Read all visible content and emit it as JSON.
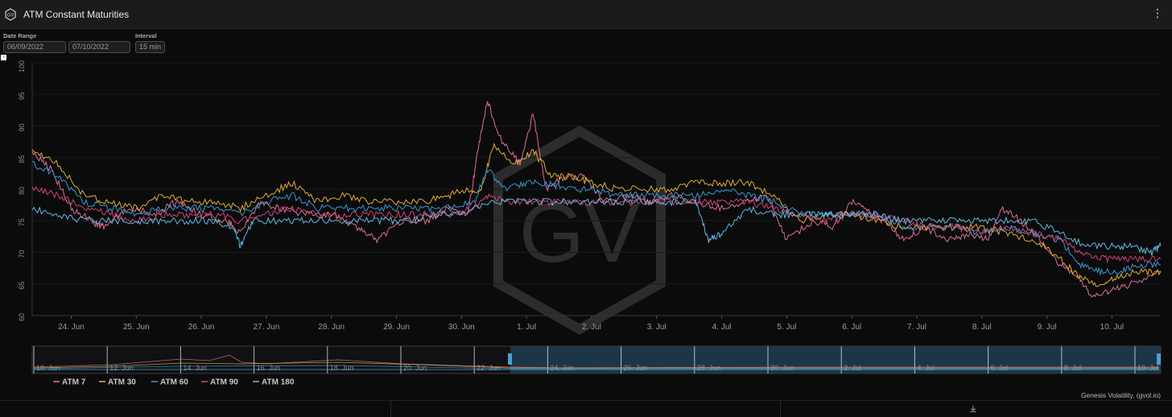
{
  "window": {
    "title": "ATM Constant Maturities",
    "menu_icon": "ellipsis-icon"
  },
  "controls": {
    "date_range_label": "Date Range",
    "start_date": "06/09/2022",
    "end_date": "07/10/2022",
    "interval_label": "Interval",
    "interval_value": "15 min"
  },
  "footer": {
    "credit": "Genesis Volatility, (gvol.io)"
  },
  "watermark": {
    "text": "GV"
  },
  "colors": {
    "atm7": "#e8739a",
    "atm30": "#e8b731",
    "atm60": "#3aa0d9",
    "atm90": "#d8487a",
    "atm180": "#62c3ec",
    "background": "#0b0b0c",
    "navigator_fill": "#1f3b4d"
  },
  "chart_data": {
    "type": "line",
    "ylim": [
      60,
      100
    ],
    "yticks": [
      "60",
      "65",
      "70",
      "75",
      "80",
      "85",
      "90",
      "95",
      "100"
    ],
    "xticks": [
      "24. Jun",
      "25. Jun",
      "26. Jun",
      "27. Jun",
      "28. Jun",
      "29. Jun",
      "30. Jun",
      "1. Jul",
      "2. Jul",
      "3. Jul",
      "4. Jul",
      "5. Jul",
      "6. Jul",
      "7. Jul",
      "8. Jul",
      "9. Jul",
      "10. Jul"
    ],
    "navigator_ticks": [
      "10. Jun",
      "12. Jun",
      "14. Jun",
      "16. Jun",
      "18. Jun",
      "20. Jun",
      "22. Jun",
      "24. Jun",
      "26. Jun",
      "28. Jun",
      "30. Jun",
      "2. Jul",
      "4. Jul",
      "6. Jul",
      "8. Jul",
      "10. Jul"
    ],
    "x_start": 23.4,
    "x_end": 40.75,
    "x_note": "x values are days in June 2022 (32 = 2 Jul)",
    "series": [
      {
        "name": "ATM 7",
        "x": [
          23.4,
          23.7,
          24.0,
          24.3,
          24.5,
          24.9,
          25.3,
          25.6,
          26.0,
          26.4,
          26.6,
          26.9,
          27.2,
          27.6,
          28.0,
          28.4,
          28.7,
          29.1,
          29.5,
          29.8,
          30.1,
          30.25,
          30.4,
          30.6,
          30.9,
          31.1,
          31.3,
          31.6,
          31.9,
          32.2,
          32.6,
          32.9,
          33.2,
          33.6,
          34.0,
          34.4,
          34.7,
          35.0,
          35.4,
          35.7,
          36.0,
          36.3,
          36.5,
          36.8,
          37.1,
          37.5,
          37.8,
          38.1,
          38.3,
          38.6,
          38.9,
          39.2,
          39.5,
          39.7,
          40.0,
          40.3,
          40.75
        ],
        "y": [
          86,
          83,
          77,
          75,
          74,
          77,
          76,
          78,
          76,
          75,
          73,
          78,
          77,
          76,
          76,
          74,
          72,
          75,
          75,
          77,
          76,
          86,
          94,
          88,
          84,
          92,
          80,
          82,
          82,
          78,
          79,
          78,
          79,
          78,
          77,
          78,
          79,
          72,
          75,
          74,
          78,
          76,
          75,
          72,
          74,
          72,
          73,
          72,
          77,
          75,
          72,
          68,
          66,
          63,
          64,
          65,
          67
        ]
      },
      {
        "name": "ATM 30",
        "x": [
          23.4,
          23.8,
          24.2,
          24.6,
          25.0,
          25.4,
          25.8,
          26.2,
          26.6,
          27.0,
          27.4,
          27.8,
          28.2,
          28.6,
          29.0,
          29.4,
          29.8,
          30.1,
          30.3,
          30.5,
          30.8,
          31.1,
          31.4,
          31.7,
          32.0,
          32.4,
          32.8,
          33.2,
          33.6,
          34.0,
          34.4,
          34.8,
          35.2,
          35.6,
          36.0,
          36.4,
          36.8,
          37.2,
          37.6,
          38.0,
          38.4,
          38.8,
          39.2,
          39.5,
          39.8,
          40.1,
          40.4,
          40.75
        ],
        "y": [
          86,
          84,
          79,
          78,
          77,
          79,
          78,
          78,
          77,
          79,
          81,
          78,
          79,
          78,
          78,
          78,
          79,
          80,
          80,
          87,
          84,
          86,
          82,
          82,
          81,
          80,
          80,
          80,
          81,
          81,
          81,
          79,
          75,
          76,
          76,
          75,
          74,
          74,
          74,
          74,
          73,
          72,
          69,
          66,
          65,
          66,
          67,
          67
        ]
      },
      {
        "name": "ATM 60",
        "x": [
          23.4,
          23.8,
          24.2,
          24.6,
          25.0,
          25.4,
          25.8,
          26.2,
          26.6,
          27.0,
          27.4,
          27.8,
          28.2,
          28.6,
          29.0,
          29.4,
          29.8,
          30.2,
          30.4,
          30.7,
          31.0,
          31.3,
          31.6,
          32.0,
          32.4,
          32.8,
          33.2,
          33.6,
          34.0,
          34.4,
          34.8,
          35.2,
          35.6,
          36.0,
          36.4,
          36.8,
          37.2,
          37.6,
          38.0,
          38.4,
          38.8,
          39.2,
          39.5,
          39.8,
          40.1,
          40.4,
          40.75
        ],
        "y": [
          84,
          82,
          78,
          77,
          76,
          77,
          77,
          77,
          76,
          78,
          79,
          77,
          77,
          77,
          77,
          77,
          77,
          78,
          83,
          80,
          81,
          81,
          80,
          80,
          79,
          79,
          79,
          79,
          80,
          79,
          78,
          76,
          76,
          76,
          76,
          74,
          74,
          74,
          73,
          74,
          73,
          72,
          68,
          67,
          67,
          68,
          68
        ]
      },
      {
        "name": "ATM 90",
        "x": [
          23.4,
          23.8,
          24.2,
          24.6,
          25.0,
          25.4,
          25.8,
          26.2,
          26.6,
          27.0,
          27.4,
          27.8,
          28.2,
          28.6,
          29.0,
          29.4,
          29.8,
          30.2,
          30.4,
          30.7,
          31.0,
          31.3,
          31.6,
          32.0,
          32.4,
          32.8,
          33.2,
          33.6,
          34.0,
          34.4,
          34.8,
          35.2,
          35.6,
          36.0,
          36.4,
          36.8,
          37.2,
          37.6,
          38.0,
          38.4,
          38.8,
          39.2,
          39.5,
          39.8,
          40.1,
          40.4,
          40.75
        ],
        "y": [
          80,
          79,
          77,
          76,
          75,
          76,
          76,
          76,
          75,
          76,
          77,
          76,
          76,
          76,
          76,
          76,
          76,
          77,
          79,
          78,
          78,
          78,
          78,
          78,
          78,
          78,
          78,
          78,
          78,
          78,
          77,
          76,
          75,
          76,
          76,
          75,
          74,
          74,
          73,
          74,
          73,
          72,
          70,
          69,
          69,
          69,
          69
        ]
      },
      {
        "name": "ATM 180",
        "x": [
          23.4,
          23.8,
          24.2,
          24.6,
          25.0,
          25.4,
          25.8,
          26.2,
          26.5,
          26.6,
          26.8,
          27.2,
          27.6,
          28.0,
          28.4,
          28.8,
          29.2,
          29.6,
          30.0,
          30.4,
          30.8,
          31.2,
          31.6,
          32.0,
          32.4,
          32.8,
          33.2,
          33.6,
          33.8,
          34.0,
          34.4,
          34.8,
          35.2,
          35.6,
          36.0,
          36.4,
          36.8,
          37.2,
          37.6,
          38.0,
          38.4,
          38.8,
          39.2,
          39.6,
          40.0,
          40.3,
          40.6,
          40.75
        ],
        "y": [
          77,
          76,
          75,
          75,
          75,
          75,
          75,
          75,
          74,
          71,
          75,
          75,
          75,
          75,
          75,
          75,
          75,
          76,
          76,
          78,
          78,
          78,
          78,
          78,
          78,
          78,
          78,
          78,
          72,
          73,
          77,
          76,
          76,
          76,
          76,
          76,
          75,
          75,
          75,
          75,
          75,
          75,
          73,
          71,
          71,
          71,
          70,
          71
        ]
      }
    ]
  }
}
